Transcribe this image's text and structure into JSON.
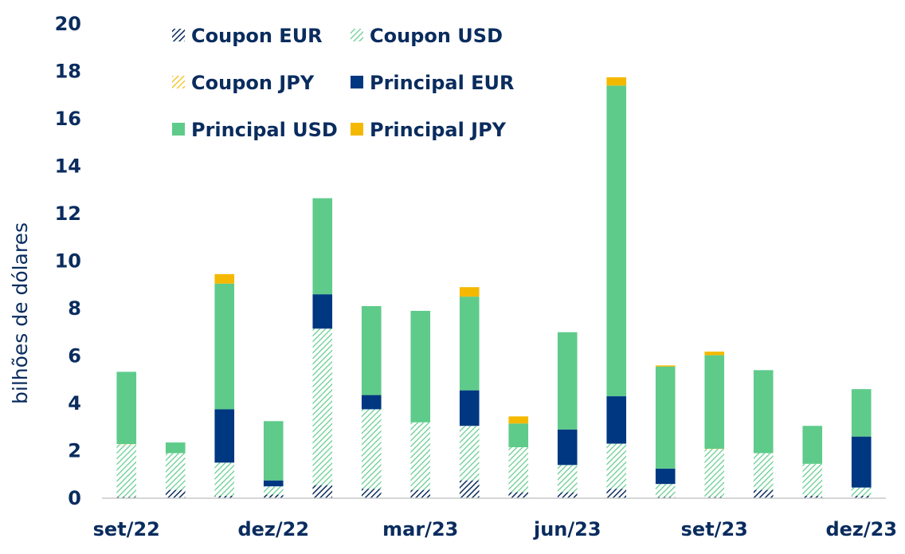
{
  "chart_data": {
    "type": "bar",
    "stacked": true,
    "title": "",
    "xlabel": "",
    "ylabel": "bilhões de dólares",
    "ylim": [
      0,
      20
    ],
    "yticks": [
      0,
      2,
      4,
      6,
      8,
      10,
      12,
      14,
      16,
      18,
      20
    ],
    "grid": false,
    "legend_position": "top-left",
    "categories": [
      "set/22",
      "out/22",
      "nov/22",
      "dez/22",
      "jan/23",
      "fev/23",
      "mar/23",
      "abr/23",
      "mai/23",
      "jun/23",
      "jul/23",
      "ago/23",
      "set/23",
      "out/23",
      "nov/23",
      "dez/23"
    ],
    "x_tick_labels": [
      "set/22",
      "dez/22",
      "mar/23",
      "jun/23",
      "set/23",
      "dez/23"
    ],
    "x_tick_positions": [
      0,
      3,
      6,
      9,
      12,
      15
    ],
    "series": [
      {
        "name": "Coupon EUR",
        "color": "#0a2c5e",
        "pattern": "hatch",
        "values": [
          0.05,
          0.35,
          0.1,
          0.15,
          0.55,
          0.4,
          0.35,
          0.75,
          0.25,
          0.25,
          0.4,
          0.05,
          0.05,
          0.35,
          0.1,
          0.1
        ]
      },
      {
        "name": "Coupon USD",
        "color": "#5ecb8a",
        "pattern": "hatch",
        "values": [
          2.2,
          1.55,
          1.4,
          0.35,
          6.6,
          3.35,
          2.85,
          2.3,
          1.9,
          1.15,
          1.9,
          0.55,
          2.0,
          1.55,
          1.35,
          0.35
        ]
      },
      {
        "name": "Coupon JPY",
        "color": "#f5b800",
        "pattern": "hatch",
        "values": [
          0.03,
          0.0,
          0.0,
          0.0,
          0.0,
          0.0,
          0.0,
          0.0,
          0.0,
          0.0,
          0.0,
          0.0,
          0.03,
          0.0,
          0.0,
          0.0
        ]
      },
      {
        "name": "Principal EUR",
        "color": "#003781",
        "pattern": "solid",
        "values": [
          0.0,
          0.0,
          2.25,
          0.25,
          1.45,
          0.6,
          0.0,
          1.5,
          0.0,
          1.5,
          2.0,
          0.65,
          0.0,
          0.0,
          0.0,
          2.15
        ]
      },
      {
        "name": "Principal USD",
        "color": "#5ecb8a",
        "pattern": "solid",
        "values": [
          3.05,
          0.45,
          5.3,
          2.5,
          4.05,
          3.75,
          4.7,
          3.95,
          1.0,
          4.1,
          13.1,
          4.3,
          3.95,
          3.5,
          1.6,
          2.0
        ]
      },
      {
        "name": "Principal JPY",
        "color": "#f5b800",
        "pattern": "solid",
        "values": [
          0.0,
          0.0,
          0.4,
          0.0,
          0.0,
          0.0,
          0.0,
          0.4,
          0.3,
          0.0,
          0.35,
          0.05,
          0.15,
          0.0,
          0.0,
          0.0
        ]
      }
    ]
  }
}
